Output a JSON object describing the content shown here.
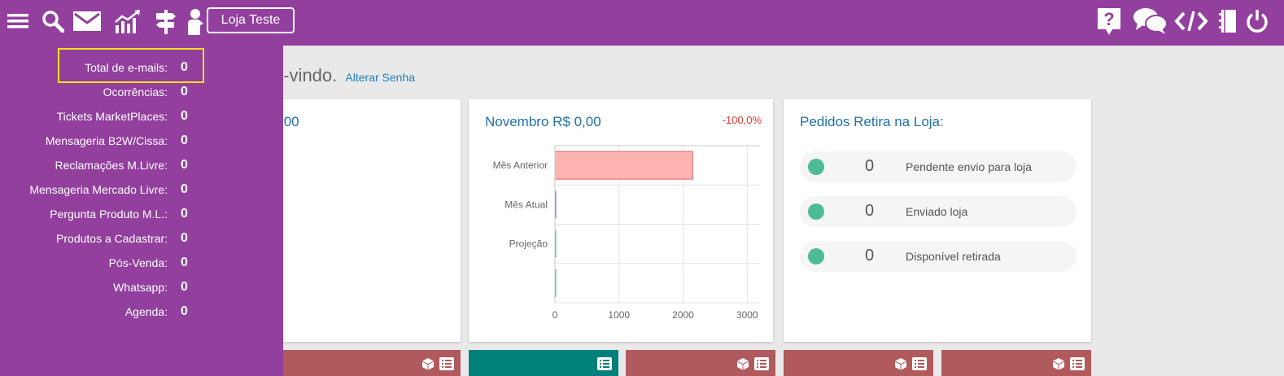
{
  "topbar": {
    "store_button": "Loja Teste",
    "icons_left": [
      "menu-icon",
      "search-icon",
      "mail-icon",
      "chart-icon",
      "signpost-icon",
      "user-board-icon"
    ],
    "icons_right": [
      "help-icon",
      "chat-icon",
      "code-icon",
      "notebook-icon",
      "power-icon"
    ],
    "bg_color": "#923f9e"
  },
  "welcome": {
    "text": "n-vindo.",
    "link": "Alterar Senha"
  },
  "cards": {
    "partial_title": ",00",
    "november": {
      "title": "Novembro R$ 0,00",
      "pct": "-100,0%"
    },
    "pickup": {
      "title": "Pedidos Retira na Loja:",
      "rows": [
        {
          "count": "0",
          "label": "Pendente envio para loja"
        },
        {
          "count": "0",
          "label": "Enviado loja"
        },
        {
          "count": "0",
          "label": "Disponível retirada"
        }
      ]
    }
  },
  "chart_data": {
    "type": "bar",
    "orientation": "horizontal",
    "categories": [
      "Mês Anterior",
      "Mês Atual",
      "Projeção",
      ""
    ],
    "values": [
      2150,
      0,
      0,
      0
    ],
    "colors": [
      "#ffb3b3",
      "#6b6bff",
      "#3ecf6e",
      "#3ecf6e"
    ],
    "xlim": [
      0,
      3200
    ],
    "xticks": [
      0,
      1000,
      2000,
      3000
    ],
    "grid": true
  },
  "panel": {
    "items": [
      {
        "label": "Total de e-mails:",
        "count": "0"
      },
      {
        "label": "Ocorrências:",
        "count": "0"
      },
      {
        "label": "Tickets MarketPlaces:",
        "count": "0"
      },
      {
        "label": "Mensageria B2W/Cissa:",
        "count": "0"
      },
      {
        "label": "Reclamações M.Livre:",
        "count": "0"
      },
      {
        "label": "Mensageria Mercado Livre:",
        "count": "0"
      },
      {
        "label": "Pergunta Produto M.L.:",
        "count": "0"
      },
      {
        "label": "Produtos a Cadastrar:",
        "count": "0"
      },
      {
        "label": "Pós-Venda:",
        "count": "0"
      },
      {
        "label": "Whatsapp:",
        "count": "0"
      },
      {
        "label": "Agenda:",
        "count": "0"
      }
    ]
  }
}
